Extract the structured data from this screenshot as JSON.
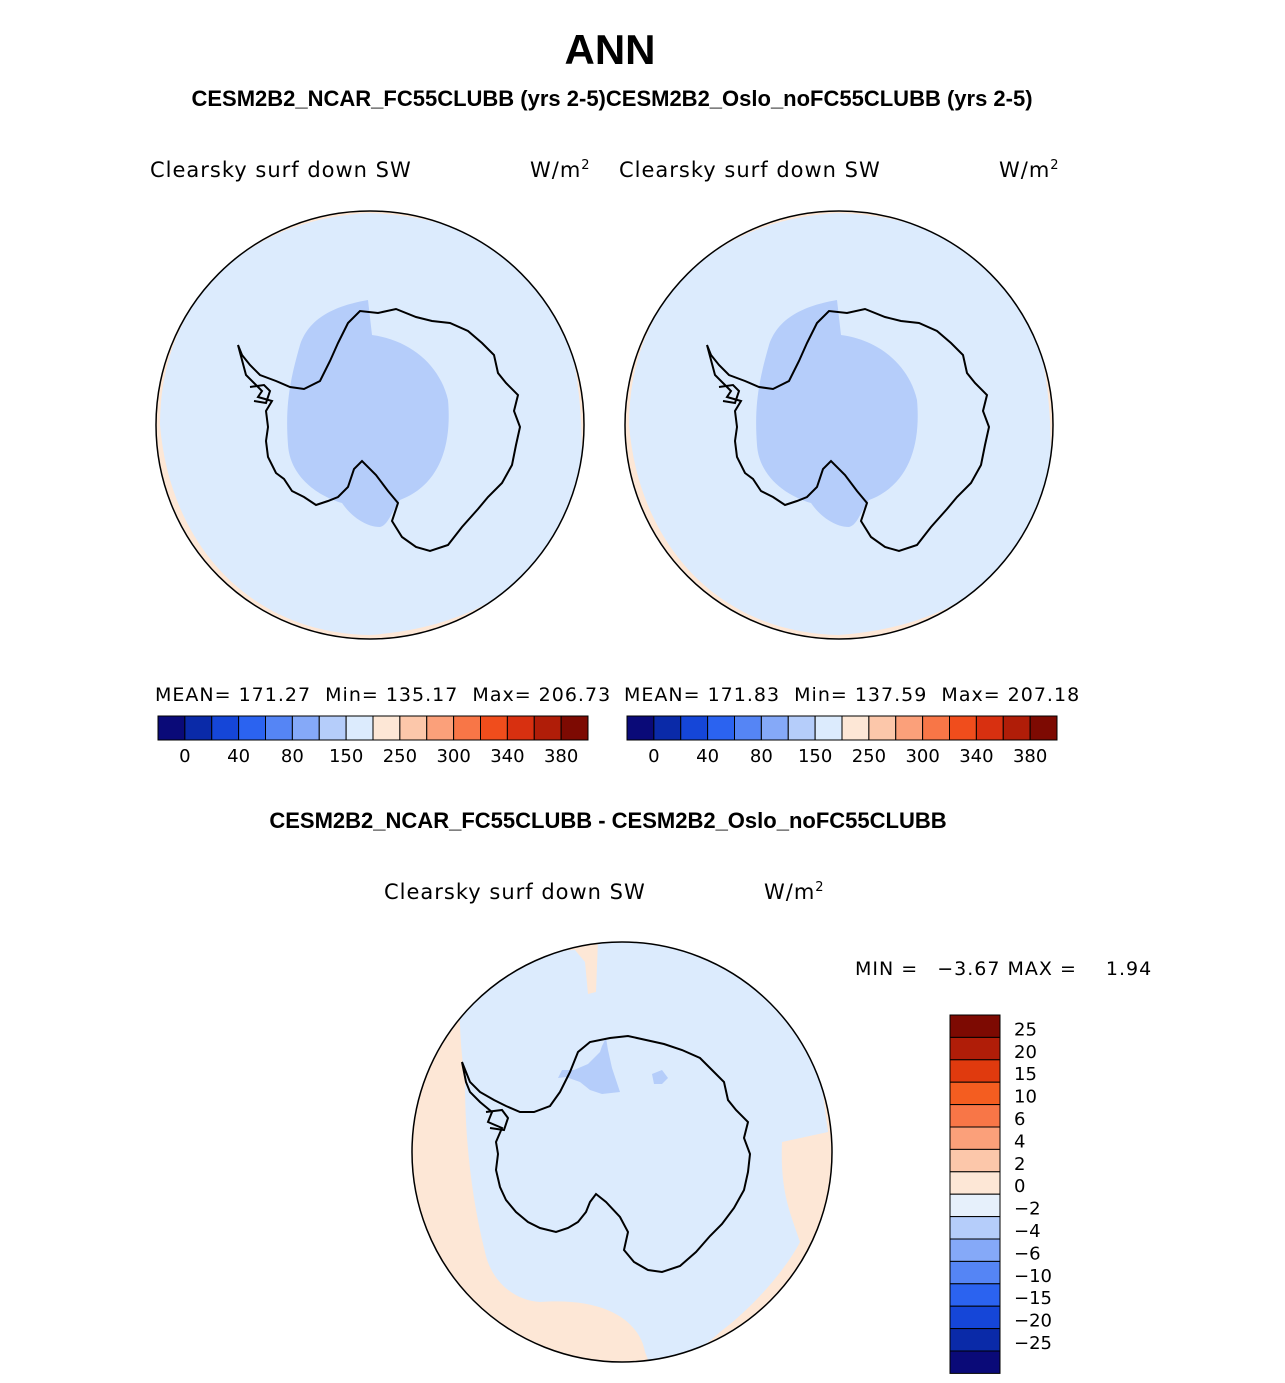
{
  "page": {
    "season": "ANN",
    "case_header": "CESM2B2_NCAR_FC55CLUBB (yrs 2-5)CESM2B2_Oslo_noFC55CLUBB (yrs 2-5)",
    "diff_title": "CESM2B2_NCAR_FC55CLUBB - CESM2B2_Oslo_noFC55CLUBB"
  },
  "panels": [
    {
      "variable": "Clearsky surf down SW",
      "units_base": "W/m",
      "units_exp": "2",
      "mean_label": "MEAN=",
      "mean_value": "171.27",
      "min_label": "Min=",
      "min_value": "135.17",
      "max_label": "Max=",
      "max_value": "206.73"
    },
    {
      "variable": "Clearsky surf down SW",
      "units_base": "W/m",
      "units_exp": "2",
      "mean_label": "MEAN=",
      "mean_value": "171.83",
      "min_label": "Min=",
      "min_value": "137.59",
      "max_label": "Max=",
      "max_value": "207.18"
    }
  ],
  "diff_panel": {
    "variable": "Clearsky surf down SW",
    "units_base": "W/m",
    "units_exp": "2",
    "min_label": "MIN =",
    "min_value": "−3.67",
    "max_label": "MAX =",
    "max_value": "1.94"
  },
  "colorbar_main": {
    "colors": [
      "#0a0a78",
      "#0a2aa8",
      "#1546d8",
      "#2b63f0",
      "#5585f5",
      "#85a9f8",
      "#b5cdfa",
      "#dcebfd",
      "#fde7d6",
      "#fcc7aa",
      "#fba07a",
      "#f87647",
      "#f04d1c",
      "#d83010",
      "#b01d08",
      "#7d0a02"
    ],
    "labels": [
      "0",
      "40",
      "80",
      "150",
      "250",
      "300",
      "340",
      "380"
    ]
  },
  "colorbar_diff": {
    "colors": [
      "#7d0a02",
      "#b01d08",
      "#e03a0e",
      "#f45d20",
      "#f87647",
      "#fba07a",
      "#fcc7aa",
      "#fde7d6",
      "#e6f0fb",
      "#b5cdfa",
      "#85a9f8",
      "#5585f5",
      "#2b63f0",
      "#1546d8",
      "#0a2aa8",
      "#0a0a78"
    ],
    "labels": [
      "25",
      "20",
      "15",
      "10",
      "6",
      "4",
      "2",
      "0",
      "−2",
      "−4",
      "−6",
      "−10",
      "−15",
      "−20",
      "−25"
    ]
  }
}
